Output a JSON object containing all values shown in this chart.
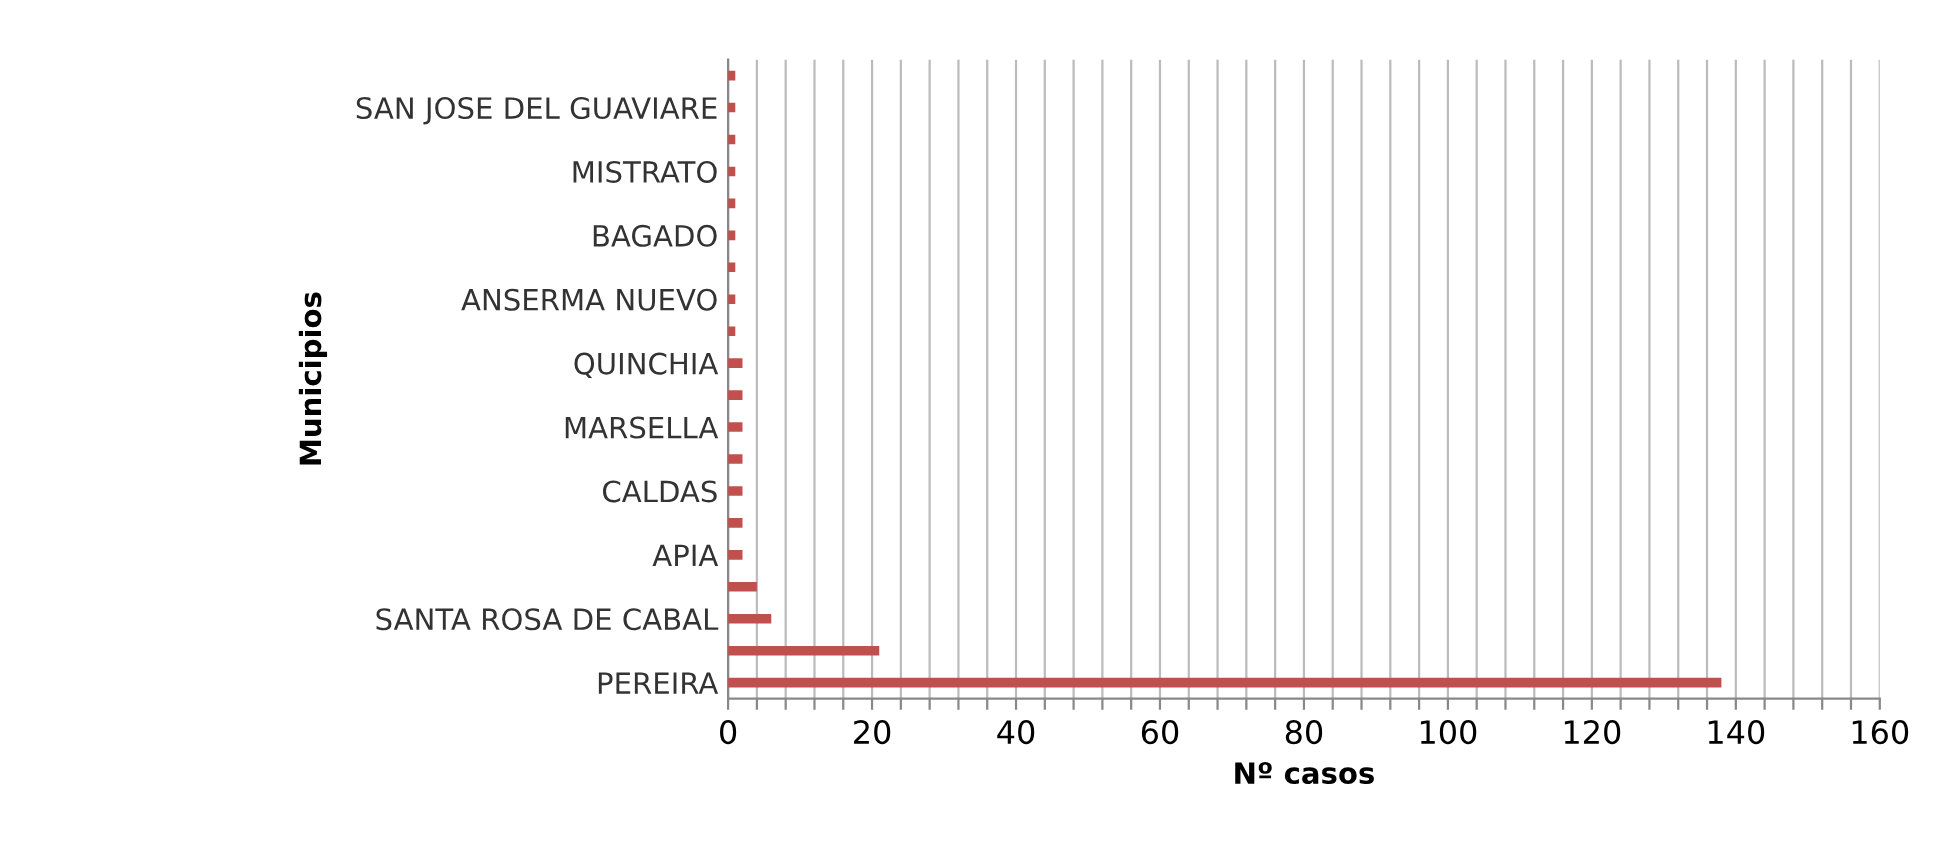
{
  "chart_data": {
    "type": "bar",
    "orientation": "horizontal",
    "xlabel": "Nº casos",
    "ylabel": "Municipios",
    "categories": [
      null,
      "SAN JOSE DEL GUAVIARE",
      null,
      "MISTRATO",
      null,
      "BAGADO",
      null,
      "ANSERMA NUEVO",
      null,
      "QUINCHIA",
      null,
      "MARSELLA",
      null,
      "CALDAS",
      null,
      "APIA",
      null,
      "SANTA ROSA DE CABAL",
      null,
      "PEREIRA"
    ],
    "values": [
      1,
      1,
      1,
      1,
      1,
      1,
      1,
      1,
      1,
      2,
      2,
      2,
      2,
      2,
      2,
      2,
      4,
      6,
      21,
      138
    ],
    "color": "#c0504d",
    "xlim": [
      0,
      160
    ],
    "xticks": [
      0,
      {
        "value": 4,
        "label": null
      },
      {
        "value": 8,
        "label": null
      },
      {
        "value": 12,
        "label": null
      },
      {
        "value": 16,
        "label": null
      },
      20,
      {
        "value": 24,
        "label": null
      },
      {
        "value": 28,
        "label": null
      },
      {
        "value": 32,
        "label": null
      },
      {
        "value": 36,
        "label": null
      },
      40,
      {
        "value": 44,
        "label": null
      },
      {
        "value": 48,
        "label": null
      },
      {
        "value": 52,
        "label": null
      },
      {
        "value": 56,
        "label": null
      },
      60,
      {
        "value": 64,
        "label": null
      },
      {
        "value": 68,
        "label": null
      },
      {
        "value": 72,
        "label": null
      },
      {
        "value": 76,
        "label": null
      },
      80,
      {
        "value": 84,
        "label": null
      },
      {
        "value": 88,
        "label": null
      },
      {
        "value": 92,
        "label": null
      },
      {
        "value": 96,
        "label": null
      },
      100,
      {
        "value": 104,
        "label": null
      },
      {
        "value": 108,
        "label": null
      },
      {
        "value": 112,
        "label": null
      },
      {
        "value": 116,
        "label": null
      },
      120,
      {
        "value": 124,
        "label": null
      },
      {
        "value": 128,
        "label": null
      },
      {
        "value": 132,
        "label": null
      },
      {
        "value": 136,
        "label": null
      },
      140,
      {
        "value": 144,
        "label": null
      },
      {
        "value": 148,
        "label": null
      },
      {
        "value": 152,
        "label": null
      },
      {
        "value": 156,
        "label": null
      },
      160
    ],
    "grid": "x",
    "legend": false
  }
}
